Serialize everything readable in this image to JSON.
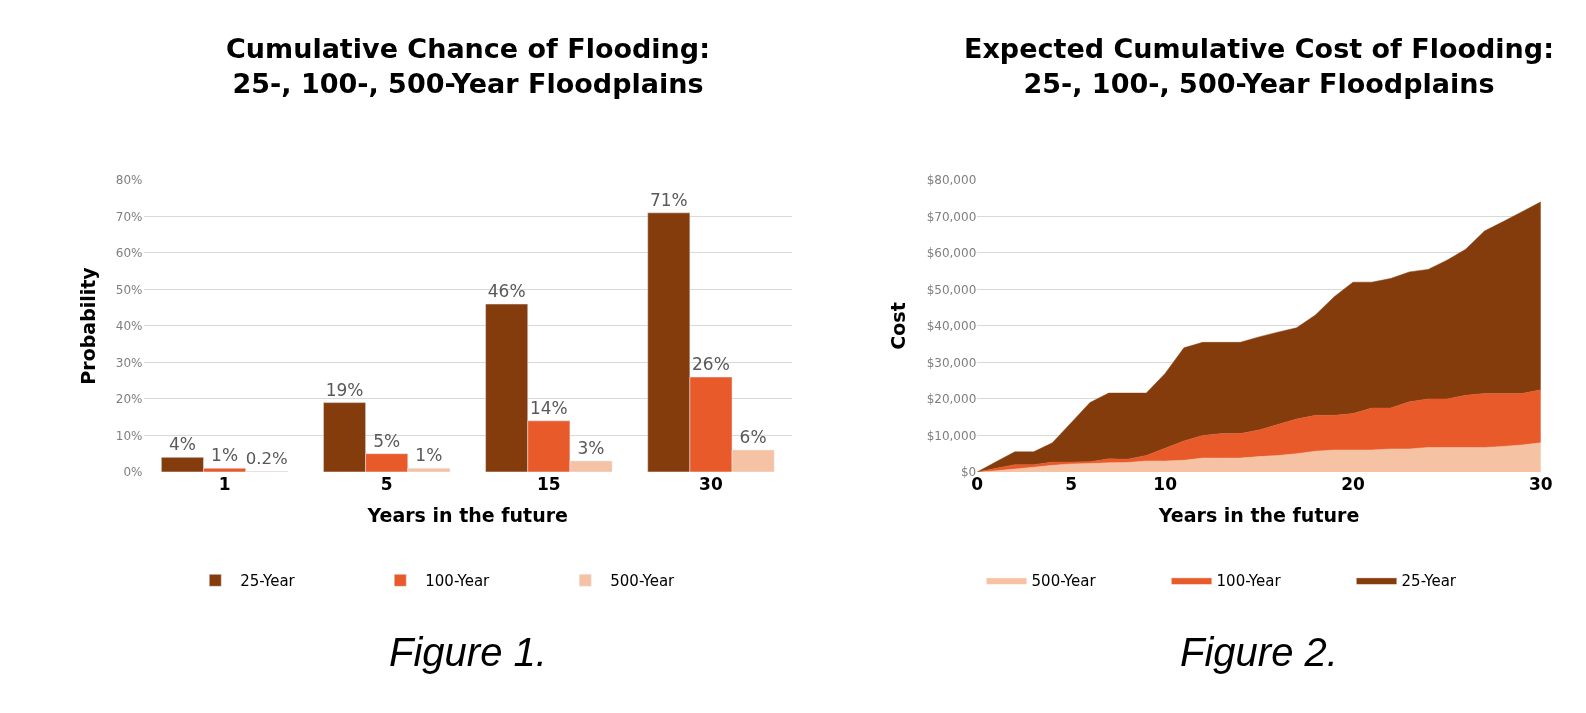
{
  "chart_data": [
    {
      "type": "bar",
      "title": "Cumulative Chance of Flooding:\n25-, 100-, 500-Year Floodplains",
      "xlabel": "Years in the future",
      "ylabel": "Probability",
      "categories": [
        "1",
        "5",
        "15",
        "30"
      ],
      "series": [
        {
          "name": "25-Year",
          "color": "#843c0c",
          "values": [
            4,
            19,
            46,
            71
          ],
          "value_labels": [
            "4%",
            "19%",
            "46%",
            "71%"
          ]
        },
        {
          "name": "100-Year",
          "color": "#e95a2b",
          "values": [
            1,
            5,
            14,
            26
          ],
          "value_labels": [
            "1%",
            "5%",
            "14%",
            "26%"
          ]
        },
        {
          "name": "500-Year",
          "color": "#f5c3a3",
          "values": [
            0.2,
            1,
            3,
            6
          ],
          "value_labels": [
            "0.2%",
            "1%",
            "3%",
            "6%"
          ]
        }
      ],
      "ylim": [
        0,
        80
      ],
      "yticks": [
        {
          "value": 0,
          "label": "0%"
        },
        {
          "value": 10,
          "label": "10%"
        },
        {
          "value": 20,
          "label": "20%"
        },
        {
          "value": 30,
          "label": "30%"
        },
        {
          "value": 40,
          "label": "40%"
        },
        {
          "value": 50,
          "label": "50%"
        },
        {
          "value": 60,
          "label": "60%"
        },
        {
          "value": 70,
          "label": "70%"
        },
        {
          "value": 80,
          "label": "80%"
        }
      ],
      "grid": "y",
      "legend": "bottom",
      "annotations": [
        "Figure 1."
      ]
    },
    {
      "type": "area",
      "stacked": true,
      "title": "Expected Cumulative Cost of Flooding:\n25-, 100-, 500-Year Floodplains",
      "xlabel": "Years in the future",
      "ylabel": "Cost",
      "x": [
        0,
        1,
        2,
        3,
        4,
        5,
        6,
        7,
        8,
        9,
        10,
        11,
        12,
        13,
        14,
        15,
        16,
        17,
        18,
        19,
        20,
        21,
        22,
        23,
        24,
        25,
        26,
        27,
        28,
        29,
        30
      ],
      "series": [
        {
          "name": "500-Year",
          "color": "#f5c3a3",
          "values": [
            0,
            300,
            800,
            1300,
            1800,
            2200,
            2300,
            2500,
            2600,
            3000,
            3000,
            3200,
            3800,
            3800,
            3800,
            4200,
            4500,
            5000,
            5700,
            6000,
            6000,
            6000,
            6300,
            6300,
            6700,
            6700,
            6700,
            6700,
            7000,
            7400,
            8000
          ]
        },
        {
          "name": "100-Year",
          "color": "#e95a2b",
          "values": [
            0,
            700,
            1200,
            700,
            900,
            500,
            500,
            1100,
            900,
            1500,
            3500,
            5300,
            6200,
            6700,
            6700,
            7300,
            8500,
            9500,
            9800,
            9500,
            10000,
            11500,
            11200,
            12900,
            13300,
            13300,
            14300,
            14800,
            14500,
            14100,
            14500
          ]
        },
        {
          "name": "25-Year",
          "color": "#843c0c",
          "values": [
            0,
            1800,
            3500,
            3500,
            5300,
            10800,
            16200,
            18000,
            18100,
            17100,
            20500,
            25500,
            25500,
            25000,
            25000,
            25500,
            25300,
            25000,
            27500,
            32500,
            36000,
            34500,
            35500,
            35600,
            35500,
            38000,
            40000,
            44500,
            47100,
            49800,
            51500
          ]
        }
      ],
      "xlim": [
        0,
        30
      ],
      "xticks": [
        0,
        5,
        10,
        20,
        30
      ],
      "ylim": [
        0,
        80000
      ],
      "yticks": [
        {
          "value": 0,
          "label": "$0"
        },
        {
          "value": 10000,
          "label": "$10,000"
        },
        {
          "value": 20000,
          "label": "$20,000"
        },
        {
          "value": 30000,
          "label": "$30,000"
        },
        {
          "value": 40000,
          "label": "$40,000"
        },
        {
          "value": 50000,
          "label": "$50,000"
        },
        {
          "value": 60000,
          "label": "$60,000"
        },
        {
          "value": 70000,
          "label": "$70,000"
        },
        {
          "value": 80000,
          "label": "$80,000"
        }
      ],
      "grid": "y",
      "legend": "bottom",
      "annotations": [
        "Figure 2."
      ]
    }
  ]
}
